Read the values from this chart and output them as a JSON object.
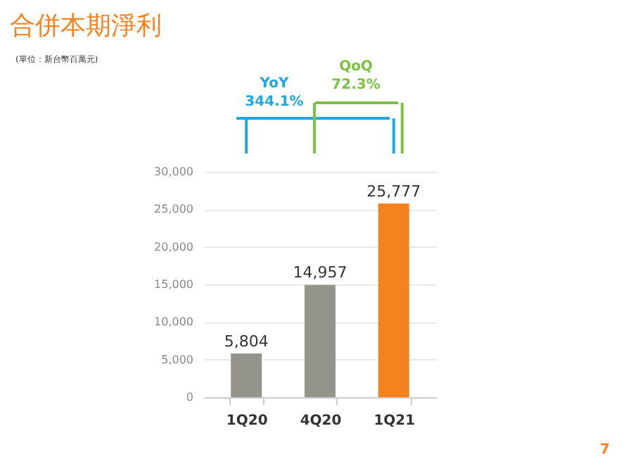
{
  "chart_data": {
    "type": "bar",
    "title": "合併本期淨利",
    "subtitle": "(單位：新台幣百萬元)",
    "categories": [
      "1Q20",
      "4Q20",
      "1Q21"
    ],
    "values": [
      5804,
      14957,
      25777
    ],
    "colors": [
      "#94948c",
      "#94948c",
      "#f5821f"
    ],
    "ylim": [
      0,
      30000
    ],
    "yticks": [
      {
        "value": 0,
        "label": "0"
      },
      {
        "value": 5000,
        "label": "5,000"
      },
      {
        "value": 10000,
        "label": "10,000"
      },
      {
        "value": 15000,
        "label": "15,000"
      },
      {
        "value": 20000,
        "label": "20,000"
      },
      {
        "value": 25000,
        "label": "25,000"
      },
      {
        "value": 30000,
        "label": "30,000"
      }
    ],
    "value_labels": [
      "5,804",
      "14,957",
      "25,777"
    ],
    "grid": "y",
    "annotations": [
      "YoY 344.1%",
      "QoQ 72.3%",
      "7"
    ]
  }
}
